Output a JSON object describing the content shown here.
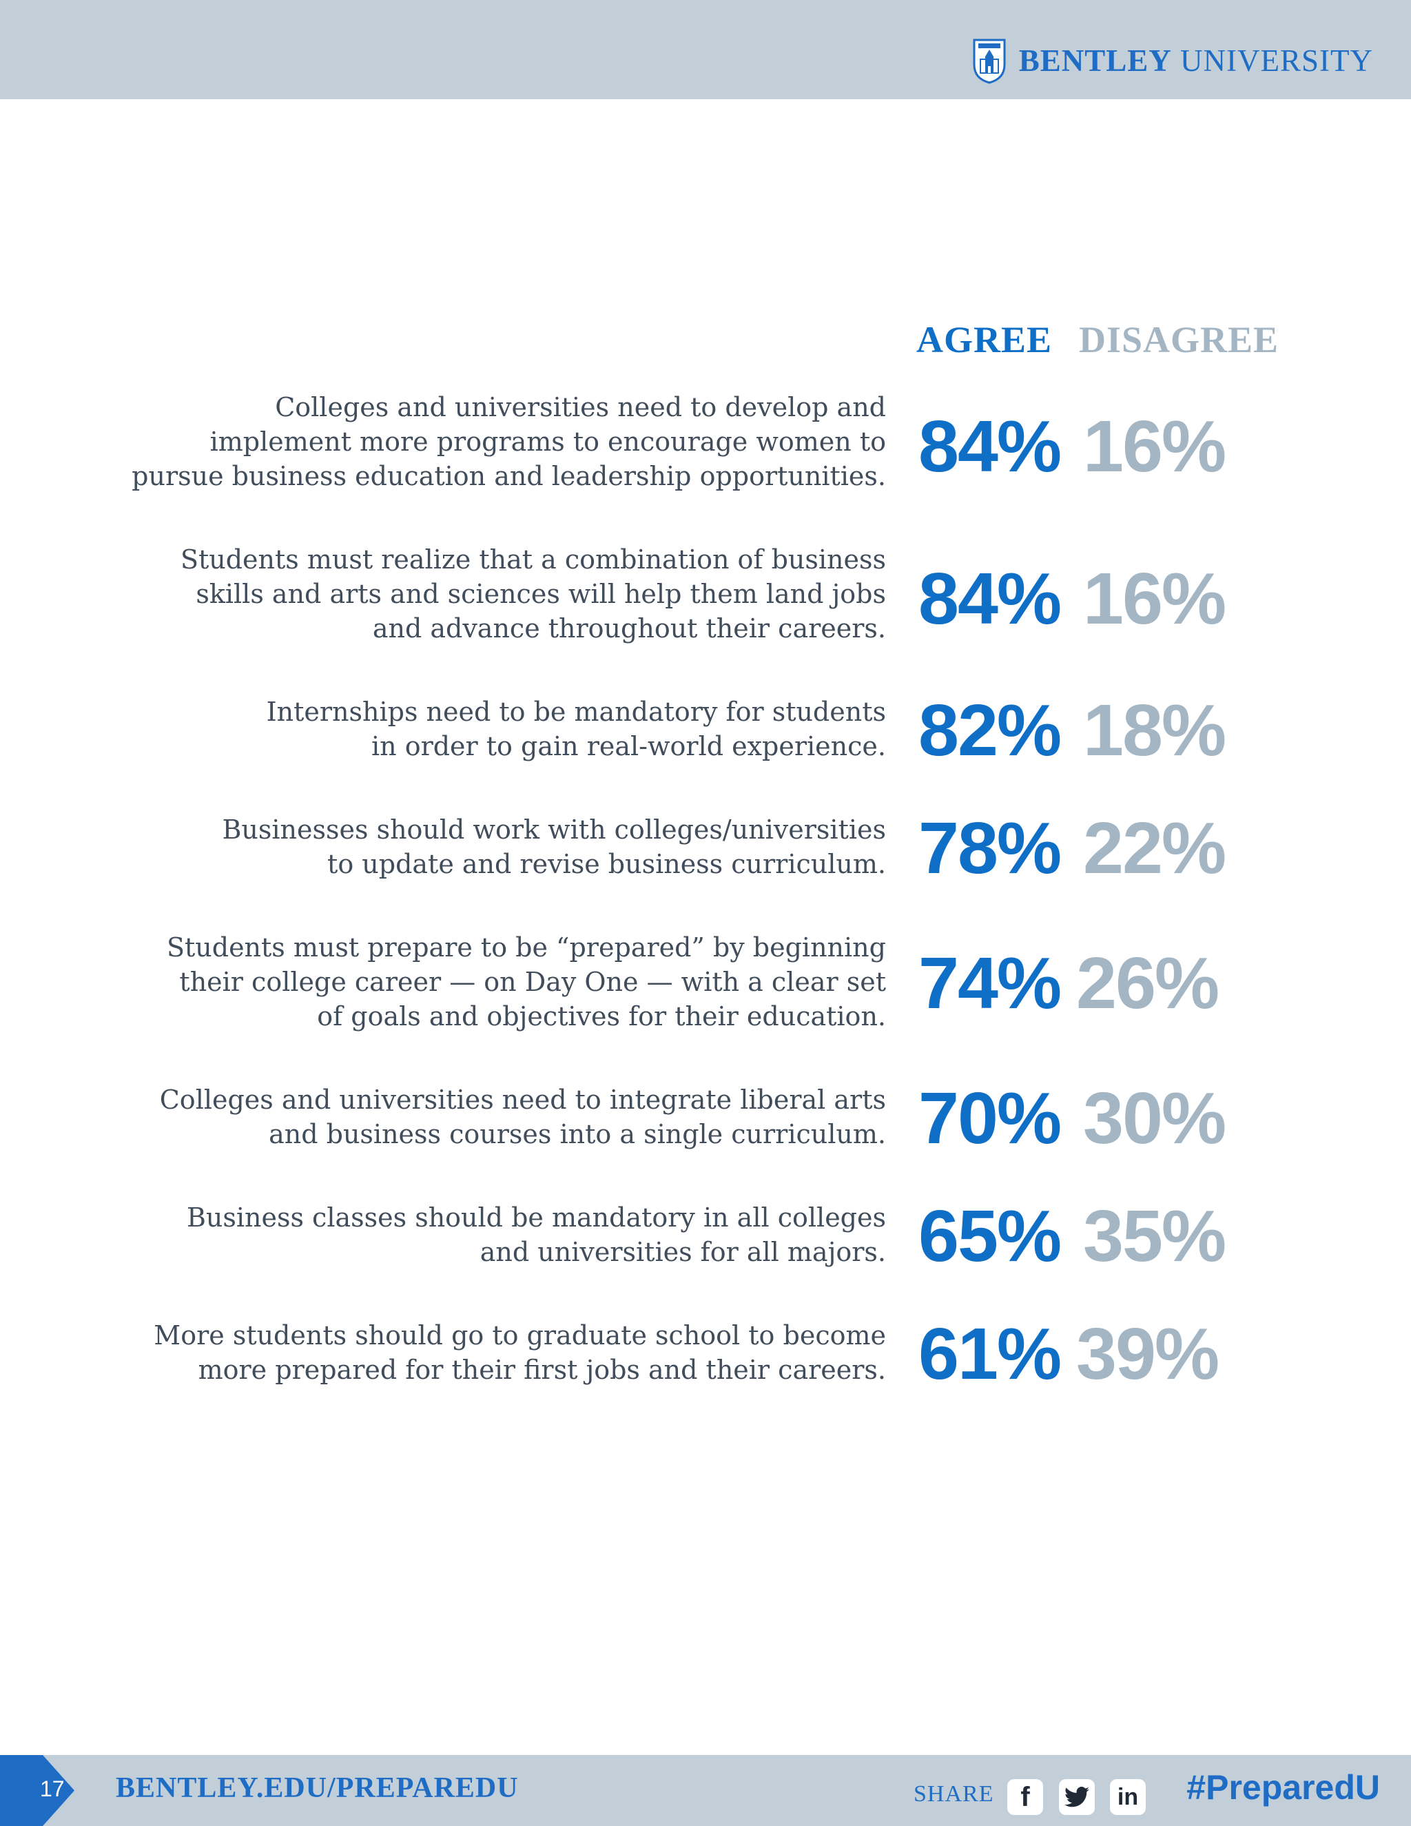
{
  "header": {
    "brand_bold": "BENTLEY",
    "brand_light": "UNIVERSITY"
  },
  "columns": {
    "agree": "AGREE",
    "disagree": "DISAGREE"
  },
  "rows": [
    {
      "statement": "Colleges and universities need to develop and\nimplement more programs to encourage women to\npursue business education and leadership opportunities.",
      "agree": "84%",
      "disagree": "16%"
    },
    {
      "statement": "Students must realize that a combination of business\nskills and arts and sciences will help them land jobs\nand advance throughout their careers.",
      "agree": "84%",
      "disagree": "16%"
    },
    {
      "statement": "Internships need to be mandatory for students\nin order to gain real-world experience.",
      "agree": "82%",
      "disagree": "18%"
    },
    {
      "statement": "Businesses should work with colleges/universities\nto update and revise business curriculum.",
      "agree": "78%",
      "disagree": "22%"
    },
    {
      "statement": "Students must prepare to be “prepared” by beginning\ntheir college career — on Day One — with a clear set\nof goals and objectives for their education.",
      "agree": "74%",
      "disagree": "26%"
    },
    {
      "statement": "Colleges and universities need to integrate liberal arts\nand business courses into a single curriculum.",
      "agree": "70%",
      "disagree": "30%"
    },
    {
      "statement": "Business classes should be mandatory in all colleges\nand universities for all majors.",
      "agree": "65%",
      "disagree": "35%"
    },
    {
      "statement": "More students should go to graduate school to become\nmore prepared for their first jobs and their careers.",
      "agree": "61%",
      "disagree": "39%"
    }
  ],
  "footer": {
    "page_number": "17",
    "url": "BENTLEY.EDU/PREPAREDU",
    "share_label": "SHARE",
    "social": {
      "facebook": "f",
      "linkedin": "in"
    },
    "hashtag": "#PreparedU"
  },
  "colors": {
    "agree": "#0f6fc6",
    "disagree": "#a4b6c3",
    "bar": "#c2ced8",
    "brand": "#1f6cc5"
  }
}
